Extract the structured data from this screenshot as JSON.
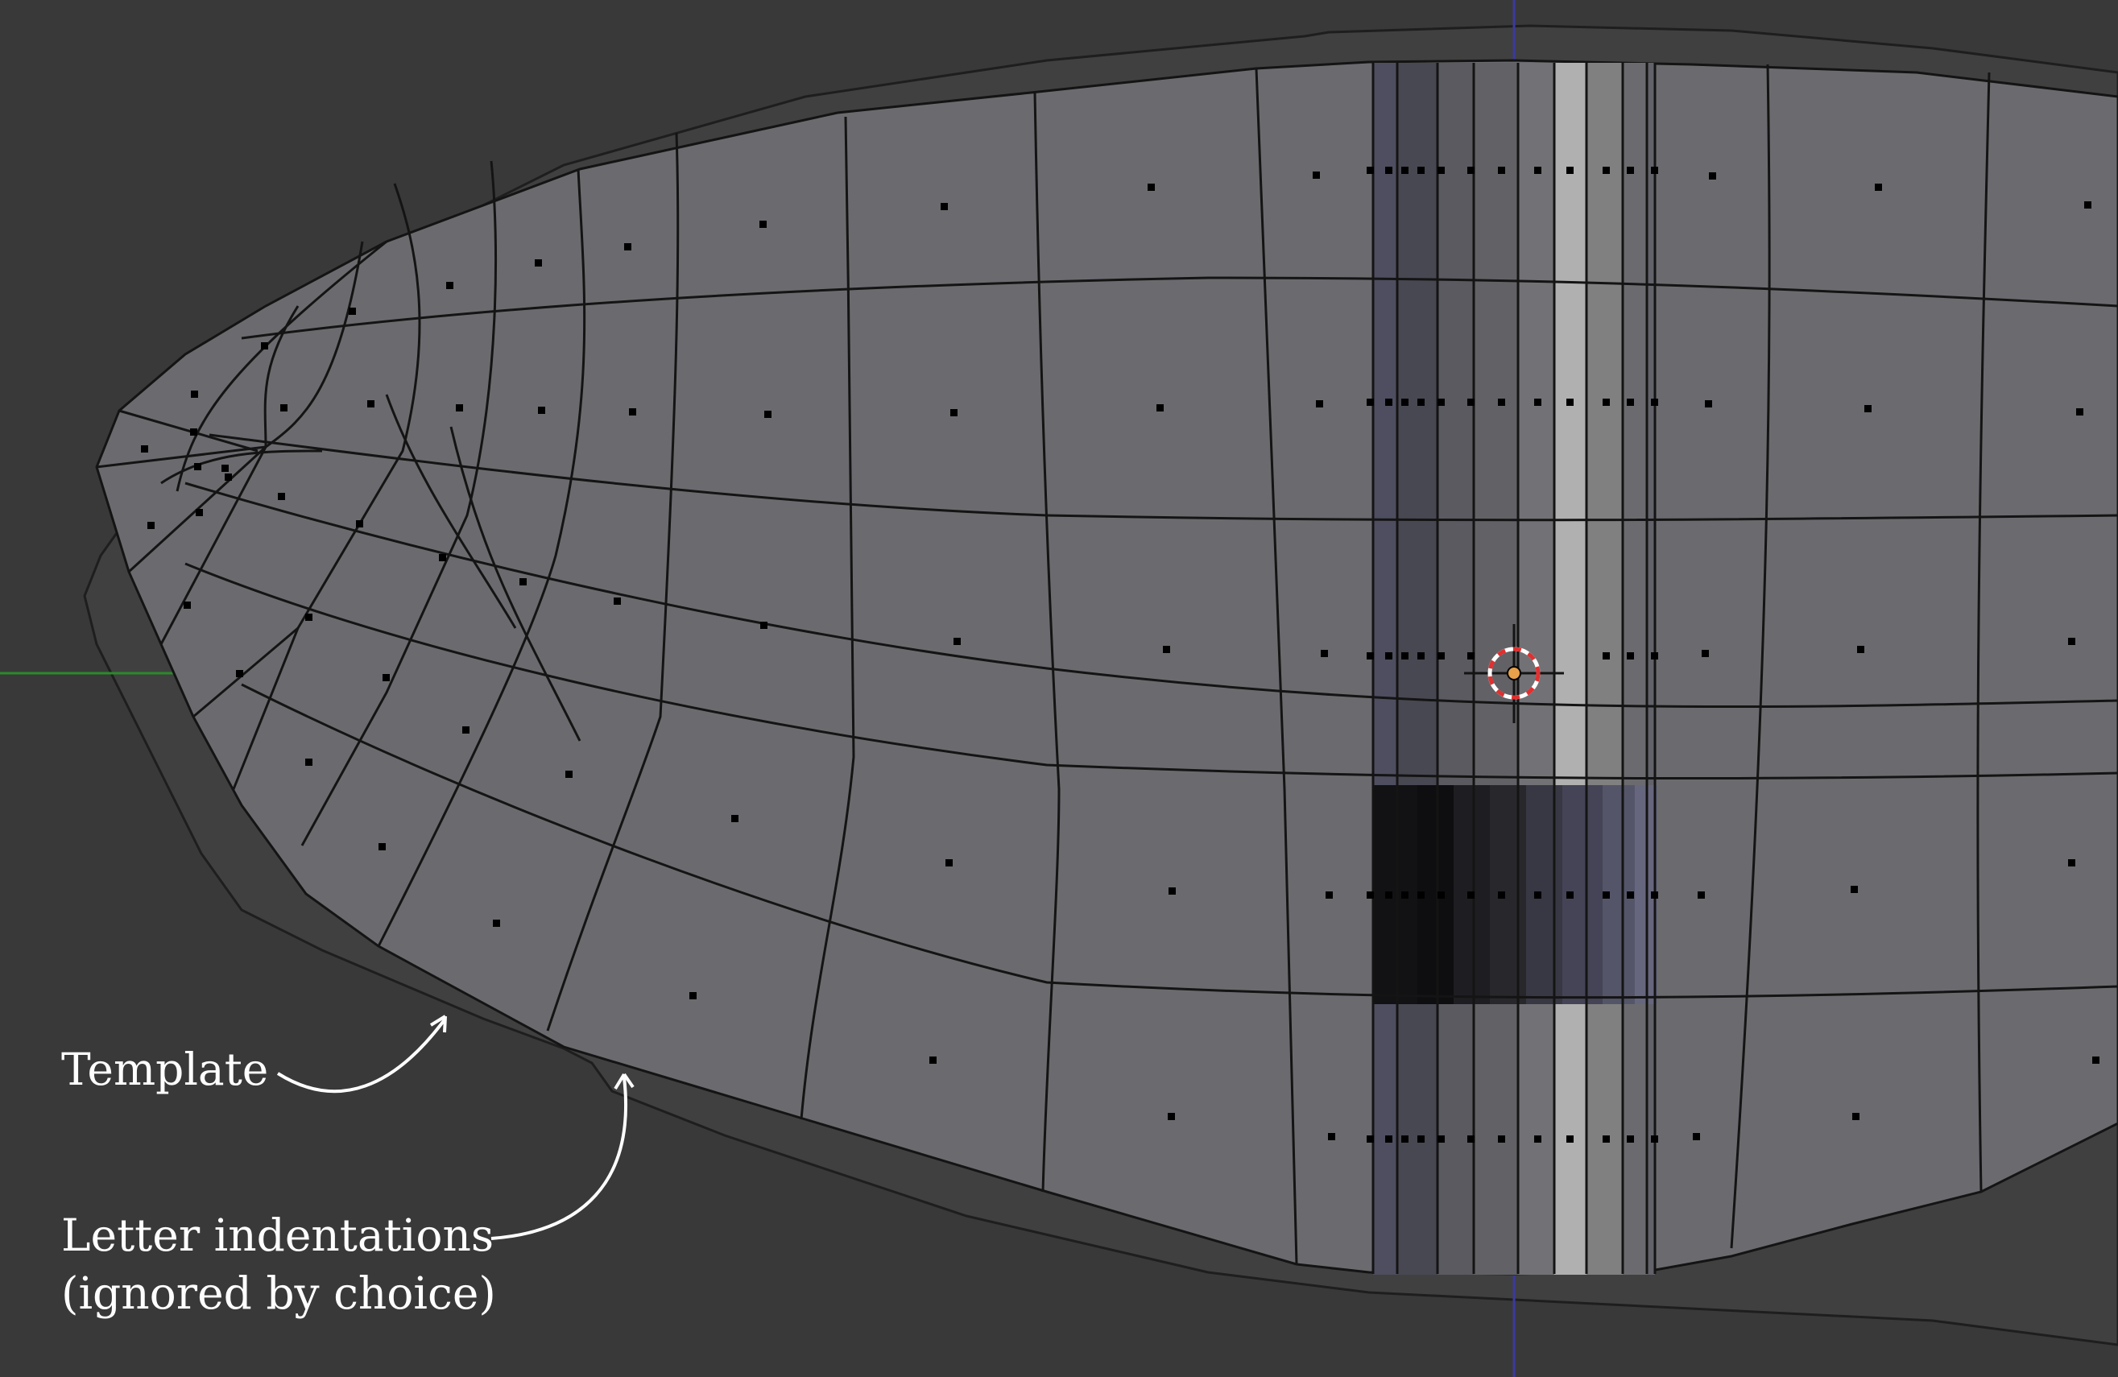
{
  "annotations": {
    "template_label": "Template",
    "letter_indentations_line1": "Letter indentations",
    "letter_indentations_line2": "(ignored by choice)"
  },
  "colors": {
    "viewport_background": "#393939",
    "mesh_face": "#6b6b6f",
    "template_silhouette": "#404040",
    "edge": "#141414",
    "vertex": "#000000",
    "x_axis": "#2a8a2a",
    "y_axis": "#3a3aa0",
    "annotation_text": "#ffffff",
    "cursor_ring_red": "#e03030",
    "cursor_center": "#e8a04a"
  },
  "icons": {
    "cursor": "3d-cursor-icon"
  }
}
